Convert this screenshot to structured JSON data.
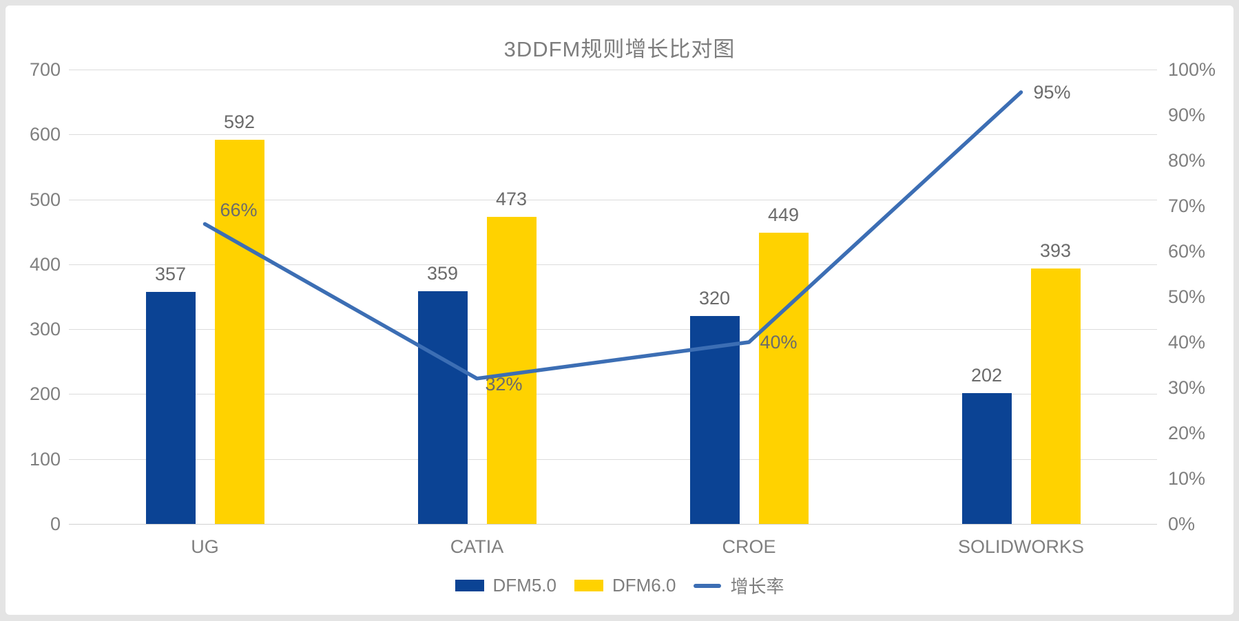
{
  "page": {
    "background": "#e4e4e4",
    "panel_background": "#ffffff"
  },
  "chart_data": {
    "type": "bar+line combo",
    "title": "3DDFM规则增长比对图",
    "categories": [
      "UG",
      "CATIA",
      "CROE",
      "SOLIDWORKS"
    ],
    "series": [
      {
        "name": "DFM5.0",
        "type": "bar",
        "color": "#0b4394",
        "axis": "left",
        "values": [
          357,
          359,
          320,
          202
        ]
      },
      {
        "name": "DFM6.0",
        "type": "bar",
        "color": "#ffd200",
        "axis": "left",
        "values": [
          592,
          473,
          449,
          393
        ]
      },
      {
        "name": "增长率",
        "type": "line",
        "color": "#3c6eb4",
        "axis": "right",
        "values": [
          66,
          32,
          40,
          95
        ],
        "labels": [
          "66%",
          "32%",
          "40%",
          "95%"
        ]
      }
    ],
    "axes": {
      "left": {
        "min": 0,
        "max": 700,
        "step": 100,
        "ticks": [
          "0",
          "100",
          "200",
          "300",
          "400",
          "500",
          "600",
          "700"
        ]
      },
      "right": {
        "min": 0,
        "max": 100,
        "step": 10,
        "unit": "%",
        "ticks": [
          "0%",
          "10%",
          "20%",
          "30%",
          "40%",
          "50%",
          "60%",
          "70%",
          "80%",
          "90%",
          "100%"
        ]
      }
    },
    "grid": true,
    "gridline_color": "#dcdcdc",
    "legend": {
      "position": "bottom",
      "entries": [
        "DFM5.0",
        "DFM6.0",
        "增长率"
      ]
    },
    "text_colors": {
      "title": "#7d7d7d",
      "axis": "#7f7f7f",
      "data_labels": "#6b6b6b"
    }
  }
}
